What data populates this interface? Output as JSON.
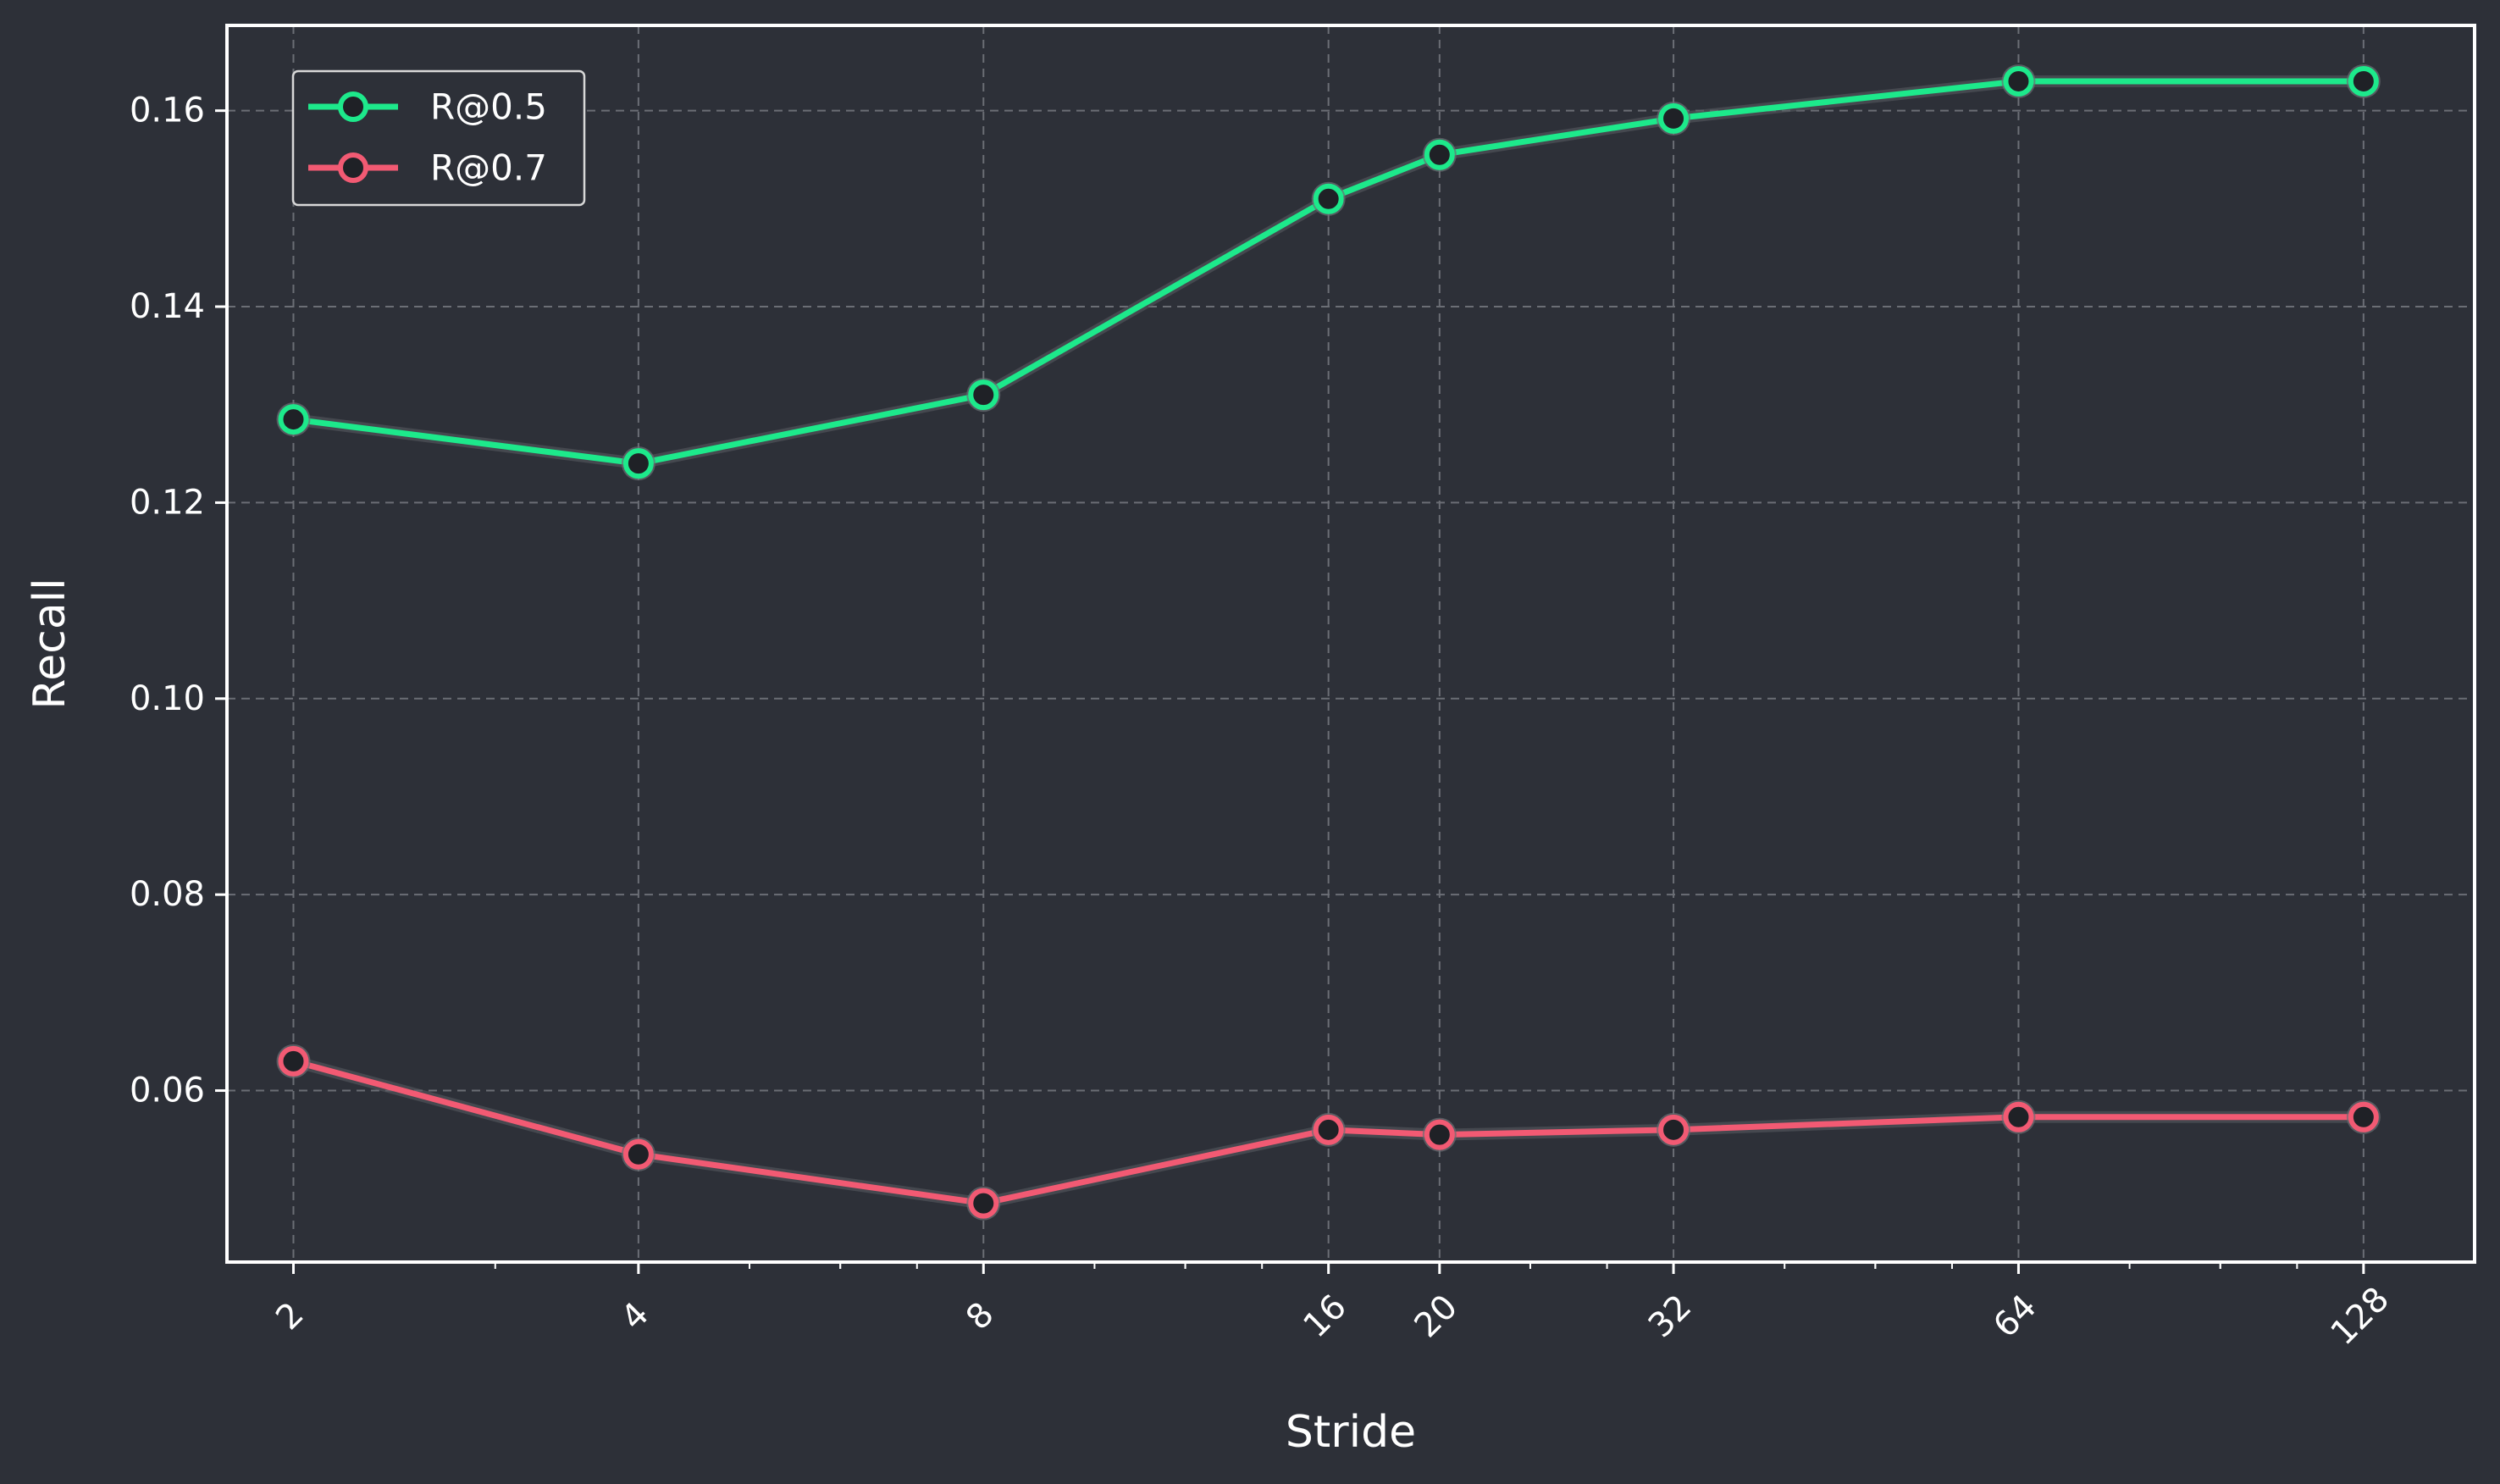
{
  "chart_data": {
    "type": "line",
    "xlabel": "Stride",
    "ylabel": "Recall",
    "xscale": "log2",
    "x": [
      2,
      4,
      8,
      16,
      20,
      32,
      64,
      128
    ],
    "xticks": [
      "2",
      "4",
      "8",
      "16",
      "20",
      "32",
      "64",
      "128"
    ],
    "xlim": [
      1.75,
      160
    ],
    "ylim": [
      0.0425,
      0.1687
    ],
    "yticks": [
      "0.06",
      "0.08",
      "0.10",
      "0.12",
      "0.14",
      "0.16"
    ],
    "ytick_values": [
      0.06,
      0.08,
      0.1,
      0.12,
      0.14,
      0.16
    ],
    "grid": true,
    "legend_position": "top-left",
    "series": [
      {
        "name": "R@0.5",
        "color": "#1de98b",
        "values": [
          0.1285,
          0.124,
          0.131,
          0.151,
          0.1555,
          0.1592,
          0.163,
          0.163
        ]
      },
      {
        "name": "R@0.7",
        "color": "#f25a73",
        "values": [
          0.063,
          0.0535,
          0.0485,
          0.056,
          0.0555,
          0.056,
          0.0573,
          0.0573
        ]
      }
    ],
    "colors": {
      "background": "#2d3038",
      "frame": "#ffffff",
      "grid": "#6b6e75",
      "marker_fill": "#1f2126"
    }
  }
}
